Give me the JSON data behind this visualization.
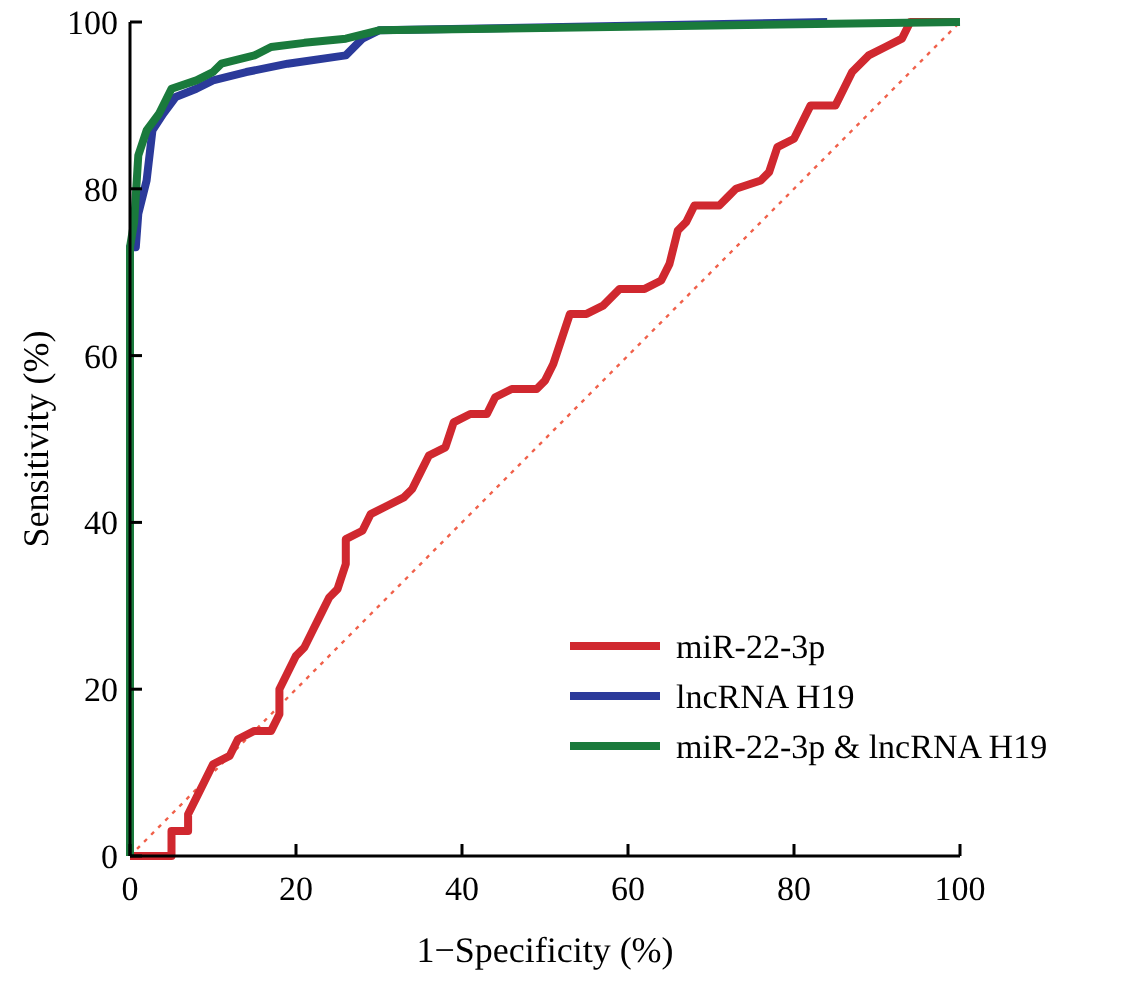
{
  "chart_data": {
    "type": "line",
    "xlabel": "1−Specificity (%)",
    "ylabel": "Sensitivity (%)",
    "xlim": [
      0,
      100
    ],
    "ylim": [
      0,
      100
    ],
    "xticks": [
      0,
      20,
      40,
      60,
      80,
      100
    ],
    "yticks": [
      0,
      20,
      40,
      60,
      80,
      100
    ],
    "grid": false,
    "legend": "bottom right",
    "marker": "none",
    "series": [
      {
        "name": "miR-22-3p",
        "color": "#d0282f",
        "x": [
          0,
          5,
          5,
          7,
          7,
          8,
          9,
          10,
          12,
          13,
          15,
          17,
          18,
          18,
          19,
          20,
          21,
          22,
          23,
          24,
          25,
          26,
          26,
          28,
          29,
          31,
          33,
          34,
          35,
          36,
          38,
          39,
          41,
          43,
          44,
          46,
          49,
          50,
          51,
          52,
          53,
          55,
          57,
          59,
          62,
          64,
          65,
          66,
          67,
          68,
          71,
          72,
          73,
          76,
          77,
          78,
          80,
          81,
          82,
          85,
          86,
          87,
          89,
          91,
          93,
          94,
          100
        ],
        "values": [
          0,
          0,
          3,
          3,
          5,
          7,
          9,
          11,
          12,
          14,
          15,
          15,
          17,
          20,
          22,
          24,
          25,
          27,
          29,
          31,
          32,
          35,
          38,
          39,
          41,
          42,
          43,
          44,
          46,
          48,
          49,
          52,
          53,
          53,
          55,
          56,
          56,
          57,
          59,
          62,
          65,
          65,
          66,
          68,
          68,
          69,
          71,
          75,
          76,
          78,
          78,
          79,
          80,
          81,
          82,
          85,
          86,
          88,
          90,
          90,
          92,
          94,
          96,
          97,
          98,
          100,
          100
        ]
      },
      {
        "name": "lncRNA H19",
        "color": "#2b3a9a",
        "x": [
          0,
          0,
          0.7,
          1,
          2,
          2.7,
          4,
          5.5,
          8,
          10,
          14,
          19,
          26,
          28,
          30,
          84
        ],
        "values": [
          0,
          73,
          73,
          77,
          81,
          87,
          89,
          91,
          92,
          93,
          94,
          95,
          96,
          98,
          99,
          100
        ]
      },
      {
        "name": "miR-22-3p & lncRNA H19",
        "color": "#1a7a3c",
        "x": [
          0,
          0,
          0.5,
          1,
          2,
          3.5,
          5,
          8,
          10,
          11,
          15,
          17,
          21,
          26,
          30,
          100
        ],
        "values": [
          0,
          73,
          76,
          84,
          87,
          89,
          92,
          93,
          94,
          95,
          96,
          97,
          97.5,
          98,
          99,
          100
        ]
      },
      {
        "color": "#f0604a",
        "line_style": "dotted",
        "x": [
          0,
          100
        ],
        "values": [
          0,
          100
        ]
      }
    ]
  }
}
